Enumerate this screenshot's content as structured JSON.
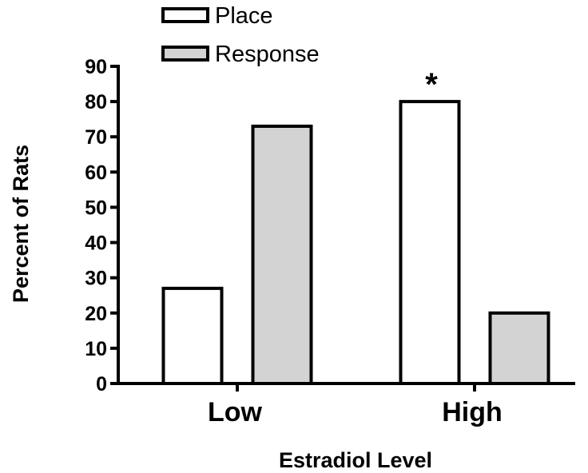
{
  "chart_data": {
    "type": "bar",
    "categories": [
      "Low",
      "High"
    ],
    "series": [
      {
        "name": "Place",
        "values": [
          27,
          80
        ],
        "color": "#ffffff"
      },
      {
        "name": "Response",
        "values": [
          73,
          20
        ],
        "color": "#d3d3d3"
      }
    ],
    "title": "",
    "xlabel": "Estradiol Level",
    "ylabel": "Percent of Rats",
    "ylim": [
      0,
      90
    ],
    "yticks": [
      0,
      10,
      20,
      30,
      40,
      50,
      60,
      70,
      80,
      90
    ],
    "grid": false,
    "legend_position": "top-left",
    "annotations": [
      {
        "text": "*",
        "category": "High",
        "series": "Place"
      }
    ]
  }
}
